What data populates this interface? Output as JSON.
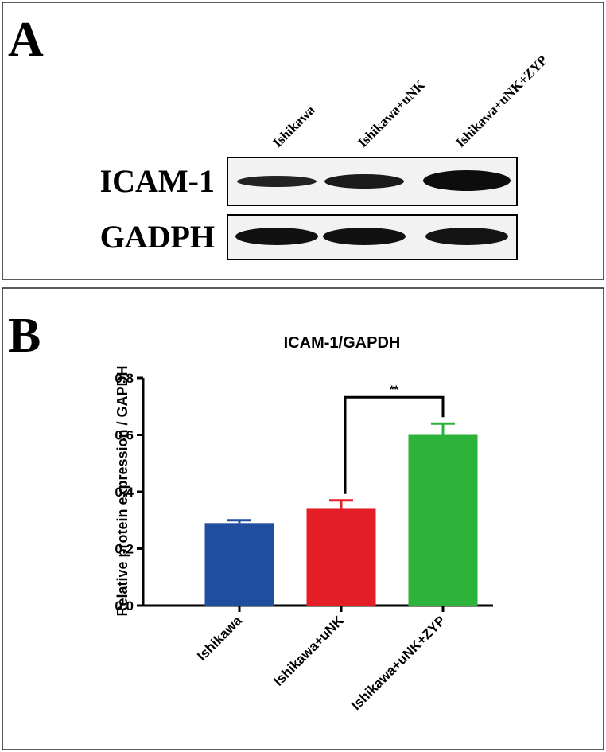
{
  "blot": {
    "panel_label": "A",
    "lanes": [
      "Ishikawa",
      "Ishikawa+uNK",
      "Ishikawa+uNK+ZYP"
    ],
    "rows": [
      "ICAM-1",
      "GADPH"
    ]
  },
  "chart_data": {
    "type": "bar",
    "panel_label": "B",
    "title": "ICAM-1/GAPDH",
    "ylabel": "Relative protein expression / GAPDH",
    "categories": [
      "Ishikawa",
      "Ishikawa+uNK",
      "Ishikawa+uNK+ZYP"
    ],
    "values": [
      0.29,
      0.34,
      0.6
    ],
    "errors": [
      0.01,
      0.03,
      0.04
    ],
    "colors": [
      "#1f4e9e",
      "#e41e26",
      "#2db23a"
    ],
    "ylim": [
      0,
      0.8
    ],
    "yticks": [
      {
        "value": 0,
        "label": "0.0"
      },
      {
        "value": 0.2,
        "label": "0.2"
      },
      {
        "value": 0.4,
        "label": "0.4"
      },
      {
        "value": 0.6,
        "label": "0.6"
      },
      {
        "value": 0.8,
        "label": "0.8"
      }
    ],
    "significance": [
      {
        "label": "**",
        "between": [
          "Ishikawa+uNK",
          "Ishikawa+uNK+ZYP"
        ]
      }
    ]
  }
}
